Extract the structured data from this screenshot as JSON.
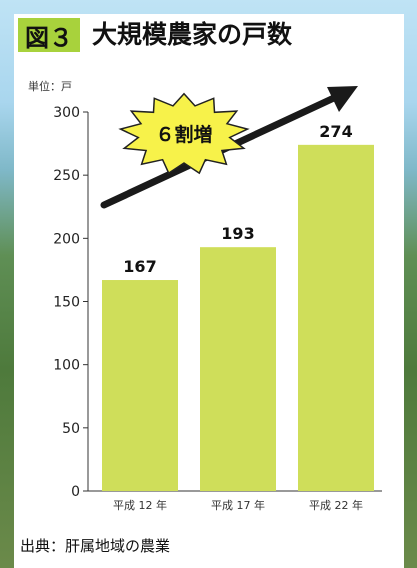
{
  "header": {
    "badge": "図３",
    "title": "大規模農家の戸数",
    "unit": "単位：戸"
  },
  "annotation": {
    "burst_text": "６割増"
  },
  "footer": {
    "source": "出典：肝属地域の農業"
  },
  "colors": {
    "bar": "#cfde5a",
    "badge": "#a8d23c",
    "burst_fill": "#f7f24a",
    "arrow": "#1a1a1a"
  },
  "chart_data": {
    "type": "bar",
    "categories": [
      "平成 12 年",
      "平成 17 年",
      "平成 22 年"
    ],
    "values": [
      167,
      193,
      274
    ],
    "ylim": [
      0,
      300
    ],
    "yticks": [
      0,
      50,
      100,
      150,
      200,
      250,
      300
    ],
    "grid": false,
    "legend": "none"
  }
}
